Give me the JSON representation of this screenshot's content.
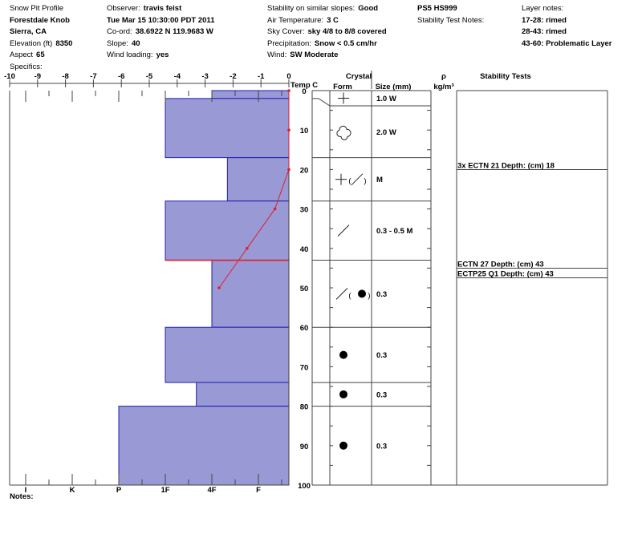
{
  "header": {
    "col1": [
      {
        "label": "Snow Pit Profile",
        "value": ""
      },
      {
        "label": "",
        "value": "Forestdale Knob"
      },
      {
        "label": "",
        "value": "Sierra, CA"
      },
      {
        "label": "Elevation (ft)",
        "value": "8350"
      },
      {
        "label": "Aspect",
        "value": "65"
      },
      {
        "label": "Specifics:",
        "value": ""
      }
    ],
    "col2": [
      {
        "label": "Observer:",
        "value": "travis feist"
      },
      {
        "label": "",
        "value": "Tue Mar 15 10:30:00 PDT 2011"
      },
      {
        "label": "Co-ord:",
        "value": "38.6922 N 119.9683 W"
      },
      {
        "label": "Slope:",
        "value": "40"
      },
      {
        "label": "Wind loading:",
        "value": "yes"
      }
    ],
    "col3": [
      {
        "label": "Stability on similar slopes:",
        "value": "Good"
      },
      {
        "label": "Air Temperature:",
        "value": "3 C"
      },
      {
        "label": "Sky Cover:",
        "value": "sky 4/8 to 8/8 covered"
      },
      {
        "label": "Precipitation:",
        "value": "Snow < 0.5 cm/hr"
      },
      {
        "label": "Wind:",
        "value": "SW Moderate"
      }
    ],
    "col4": [
      {
        "label": "",
        "value": "PS5 HS999"
      },
      {
        "label": "Stability Test Notes:",
        "value": ""
      }
    ],
    "col5": [
      {
        "label": "Layer notes:",
        "value": ""
      },
      {
        "label": "",
        "value": "17-28: rimed"
      },
      {
        "label": "",
        "value": "28-43: rimed"
      },
      {
        "label": "",
        "value": "43-60: Problematic Layer"
      }
    ]
  },
  "footer": {
    "notes_label": "Notes:"
  },
  "chart_data": {
    "type": "snow-profile",
    "temp_axis": {
      "label": "Temp C",
      "range": [
        -10,
        0
      ],
      "ticks": [
        -10,
        -9,
        -8,
        -7,
        -6,
        -5,
        -4,
        -3,
        -2,
        -1,
        0
      ]
    },
    "depth_axis": {
      "range": [
        0,
        100
      ],
      "ticks": [
        0,
        10,
        20,
        30,
        40,
        50,
        60,
        70,
        80,
        90,
        100
      ]
    },
    "hardness_axis": {
      "ticks": [
        "I",
        "K",
        "P",
        "1F",
        "4F",
        "F"
      ]
    },
    "columns": {
      "crystal": "Crystal",
      "form": "Form",
      "size": "Size (mm)",
      "density": "ρ",
      "density_unit": "kg/m³",
      "stability": "Stability Tests"
    },
    "colors": {
      "layer_fill": "#9999d6",
      "layer_stroke": "#2020b0",
      "temperature": "#e0202a",
      "critical_layer": "#e0202a"
    },
    "layers": [
      {
        "top": 0,
        "bottom": 2,
        "hardness": "4F",
        "form": "plus",
        "size": "1.0 W"
      },
      {
        "top": 2,
        "bottom": 17,
        "hardness": "1F",
        "form": "trefoil",
        "size": "2.0 W"
      },
      {
        "top": 17,
        "bottom": 28,
        "hardness": "4F-",
        "form": "plus-slash",
        "size": "M"
      },
      {
        "top": 28,
        "bottom": 43,
        "hardness": "1F",
        "form": "slash",
        "size": "0.3 - 0.5 M"
      },
      {
        "top": 43,
        "bottom": 60,
        "hardness": "4F",
        "form": "slash-dot",
        "size": "0.3"
      },
      {
        "top": 60,
        "bottom": 74,
        "hardness": "1F",
        "form": "dot",
        "size": "0.3"
      },
      {
        "top": 74,
        "bottom": 80,
        "hardness": "4F+",
        "form": "dot",
        "size": "0.3"
      },
      {
        "top": 80,
        "bottom": 100,
        "hardness": "P",
        "form": "dot",
        "size": "0.3"
      }
    ],
    "critical_boundary_depth": 43,
    "temperature_profile": [
      {
        "depth": 0,
        "temp": 0
      },
      {
        "depth": 10,
        "temp": 0
      },
      {
        "depth": 20,
        "temp": 0
      },
      {
        "depth": 30,
        "temp": -0.5
      },
      {
        "depth": 40,
        "temp": -1.5
      },
      {
        "depth": 50,
        "temp": -2.5
      }
    ],
    "stability_tests": [
      {
        "text": "3x ECTN 21   Depth: (cm) 18",
        "depth": 18
      },
      {
        "text": "ECTN 27   Depth: (cm) 43",
        "depth": 43
      },
      {
        "text": "ECTP25 Q1 Depth: (cm) 43",
        "depth": 43
      }
    ]
  }
}
